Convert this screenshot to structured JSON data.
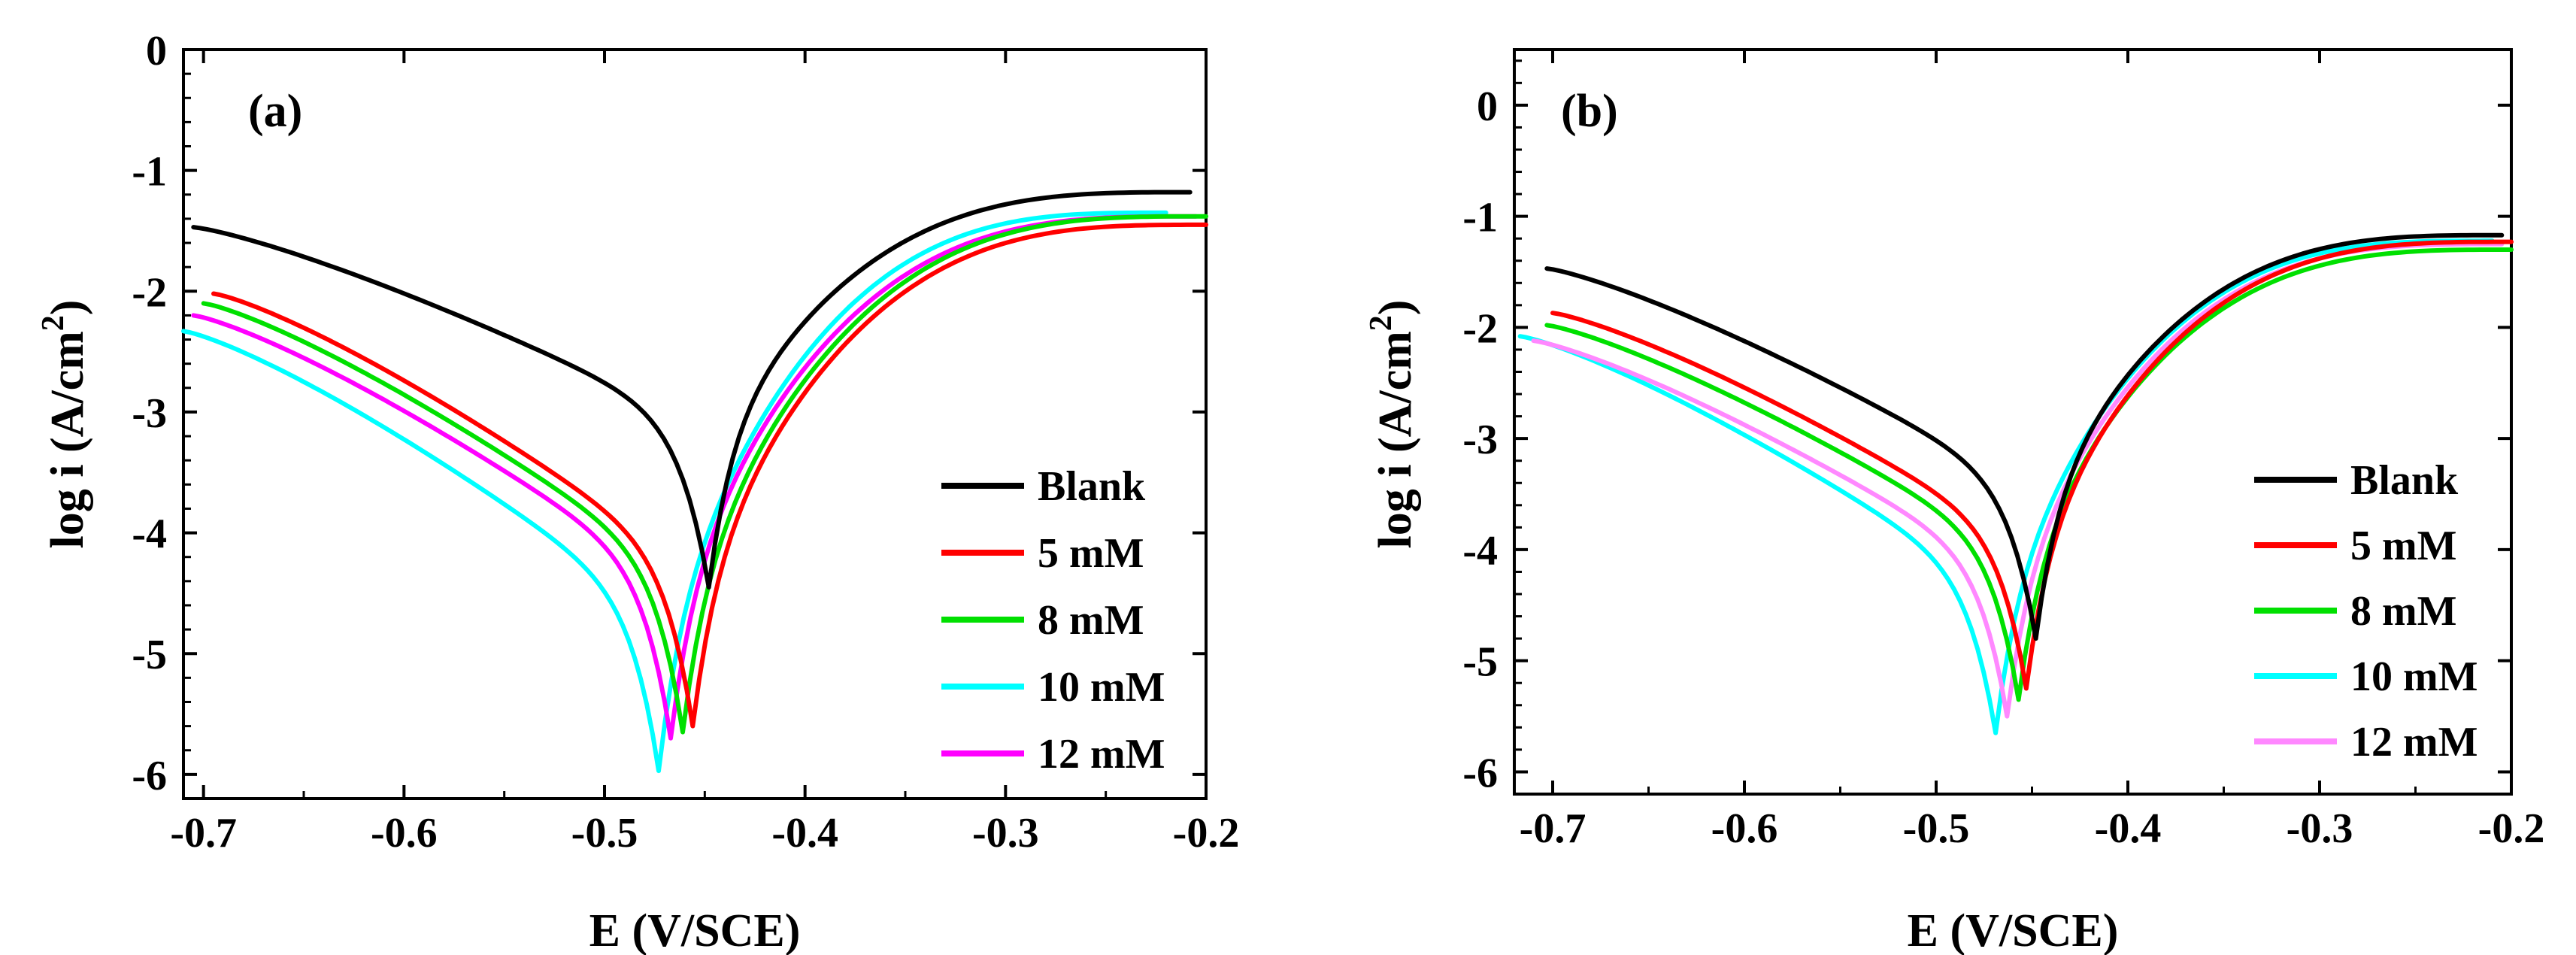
{
  "chart_data": [
    {
      "panel": "(a)",
      "type": "line",
      "xlabel": "E (V/SCE)",
      "ylabel": "log i (A/cm",
      "ylabel_sup": "2",
      "ylabel_close": ")",
      "xlim": [
        -0.71,
        -0.2
      ],
      "ylim": [
        -6.2,
        0
      ],
      "xticks": [
        -0.7,
        -0.6,
        -0.5,
        -0.4,
        -0.3,
        -0.2
      ],
      "xtick_labels": [
        "-0.7",
        "-0.6",
        "-0.5",
        "-0.4",
        "-0.3",
        "-0.2"
      ],
      "yticks": [
        0,
        -1,
        -2,
        -3,
        -4,
        -5,
        -6
      ],
      "ytick_labels": [
        "0",
        "-1",
        "-2",
        "-3",
        "-4",
        "-5",
        "-6"
      ],
      "legend_position": "lower-right",
      "series": [
        {
          "name": "Blank",
          "color": "#000000",
          "ecorr": -0.448,
          "pmin": -4.45,
          "left": [
            -0.705,
            -1.47
          ],
          "right": [
            -0.208,
            -1.18
          ]
        },
        {
          "name": "5 mM",
          "color": "#ff0000",
          "ecorr": -0.456,
          "pmin": -5.6,
          "left": [
            -0.695,
            -2.02
          ],
          "right": [
            -0.2,
            -1.45
          ]
        },
        {
          "name": "8 mM",
          "color": "#00e000",
          "ecorr": -0.461,
          "pmin": -5.65,
          "left": [
            -0.7,
            -2.1
          ],
          "right": [
            -0.2,
            -1.38
          ]
        },
        {
          "name": "10 mM",
          "color": "#00ffff",
          "ecorr": -0.473,
          "pmin": -5.97,
          "left": [
            -0.71,
            -2.33
          ],
          "right": [
            -0.22,
            -1.35
          ]
        },
        {
          "name": "12 mM",
          "color": "#ff00ff",
          "ecorr": -0.467,
          "pmin": -5.7,
          "left": [
            -0.705,
            -2.2
          ],
          "right": [
            -0.205,
            -1.38
          ]
        }
      ]
    },
    {
      "panel": "(b)",
      "type": "line",
      "xlabel": "E (V/SCE)",
      "ylabel": "log i (A/cm",
      "ylabel_sup": "2",
      "ylabel_close": ")",
      "xlim": [
        -0.72,
        -0.2
      ],
      "ylim": [
        -6.2,
        0.5
      ],
      "xticks": [
        -0.7,
        -0.6,
        -0.5,
        -0.4,
        -0.3,
        -0.2
      ],
      "xtick_labels": [
        "-0.7",
        "-0.6",
        "-0.5",
        "-0.4",
        "-0.3",
        "-0.2"
      ],
      "yticks": [
        0,
        -1,
        -2,
        -3,
        -4,
        -5,
        -6
      ],
      "ytick_labels": [
        "0",
        "-1",
        "-2",
        "-3",
        "-4",
        "-5",
        "-6"
      ],
      "legend_position": "lower-right",
      "series": [
        {
          "name": "Blank",
          "color": "#000000",
          "ecorr": -0.448,
          "pmin": -4.8,
          "left": [
            -0.703,
            -1.47
          ],
          "right": [
            -0.205,
            -1.17
          ]
        },
        {
          "name": "5 mM",
          "color": "#ff0000",
          "ecorr": -0.453,
          "pmin": -5.25,
          "left": [
            -0.7,
            -1.87
          ],
          "right": [
            -0.2,
            -1.23
          ]
        },
        {
          "name": "8 mM",
          "color": "#00e000",
          "ecorr": -0.457,
          "pmin": -5.35,
          "left": [
            -0.703,
            -1.98
          ],
          "right": [
            -0.2,
            -1.3
          ]
        },
        {
          "name": "10 mM",
          "color": "#00ffff",
          "ecorr": -0.469,
          "pmin": -5.65,
          "left": [
            -0.717,
            -2.08
          ],
          "right": [
            -0.21,
            -1.22
          ]
        },
        {
          "name": "12 mM",
          "color": "#ff88ff",
          "ecorr": -0.463,
          "pmin": -5.5,
          "left": [
            -0.71,
            -2.12
          ],
          "right": [
            -0.205,
            -1.25
          ]
        }
      ]
    }
  ]
}
